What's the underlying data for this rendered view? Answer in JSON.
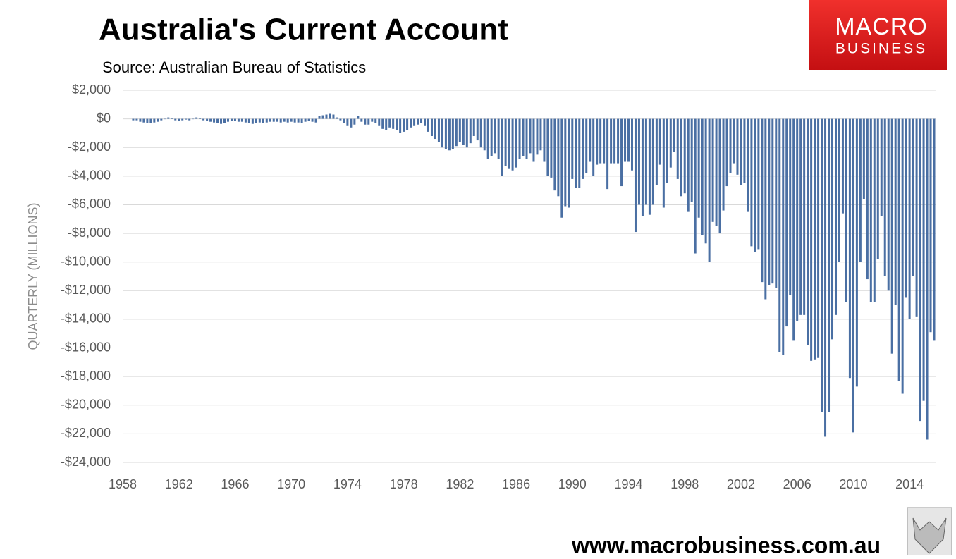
{
  "chart_data": {
    "type": "bar",
    "title": "Australia's Current Account",
    "subtitle": "Source: Australian Bureau of Statistics",
    "ylabel": "QUARTERLY (MILLIONS)",
    "logo_top": "MACRO",
    "logo_bottom": "BUSINESS",
    "website": "www.macrobusiness.com.au",
    "color": "#4a6fa3",
    "grid": true,
    "xlim": [
      1958,
      2015.85
    ],
    "xticks": [
      1958,
      1962,
      1966,
      1970,
      1974,
      1978,
      1982,
      1986,
      1990,
      1994,
      1998,
      2002,
      2006,
      2010,
      2014
    ],
    "ylim": [
      -24000,
      2000
    ],
    "yticks": [
      {
        "value": 2000,
        "label": "$2,000"
      },
      {
        "value": 0,
        "label": "$0"
      },
      {
        "value": -2000,
        "label": "-$2,000"
      },
      {
        "value": -4000,
        "label": "-$4,000"
      },
      {
        "value": -6000,
        "label": "-$6,000"
      },
      {
        "value": -8000,
        "label": "-$8,000"
      },
      {
        "value": -10000,
        "label": "-$10,000"
      },
      {
        "value": -12000,
        "label": "-$12,000"
      },
      {
        "value": -14000,
        "label": "-$14,000"
      },
      {
        "value": -16000,
        "label": "-$16,000"
      },
      {
        "value": -18000,
        "label": "-$18,000"
      },
      {
        "value": -20000,
        "label": "-$20,000"
      },
      {
        "value": -22000,
        "label": "-$22,000"
      },
      {
        "value": -24000,
        "label": "-$24,000"
      }
    ],
    "x": [
      1958.75,
      1959,
      1959.25,
      1959.5,
      1959.75,
      1960,
      1960.25,
      1960.5,
      1960.75,
      1961,
      1961.25,
      1961.5,
      1961.75,
      1962,
      1962.25,
      1962.5,
      1962.75,
      1963,
      1963.25,
      1963.5,
      1963.75,
      1964,
      1964.25,
      1964.5,
      1964.75,
      1965,
      1965.25,
      1965.5,
      1965.75,
      1966,
      1966.25,
      1966.5,
      1966.75,
      1967,
      1967.25,
      1967.5,
      1967.75,
      1968,
      1968.25,
      1968.5,
      1968.75,
      1969,
      1969.25,
      1969.5,
      1969.75,
      1970,
      1970.25,
      1970.5,
      1970.75,
      1971,
      1971.25,
      1971.5,
      1971.75,
      1972,
      1972.25,
      1972.5,
      1972.75,
      1973,
      1973.25,
      1973.5,
      1973.75,
      1974,
      1974.25,
      1974.5,
      1974.75,
      1975,
      1975.25,
      1975.5,
      1975.75,
      1976,
      1976.25,
      1976.5,
      1976.75,
      1977,
      1977.25,
      1977.5,
      1977.75,
      1978,
      1978.25,
      1978.5,
      1978.75,
      1979,
      1979.25,
      1979.5,
      1979.75,
      1980,
      1980.25,
      1980.5,
      1980.75,
      1981,
      1981.25,
      1981.5,
      1981.75,
      1982,
      1982.25,
      1982.5,
      1982.75,
      1983,
      1983.25,
      1983.5,
      1983.75,
      1984,
      1984.25,
      1984.5,
      1984.75,
      1985,
      1985.25,
      1985.5,
      1985.75,
      1986,
      1986.25,
      1986.5,
      1986.75,
      1987,
      1987.25,
      1987.5,
      1987.75,
      1988,
      1988.25,
      1988.5,
      1988.75,
      1989,
      1989.25,
      1989.5,
      1989.75,
      1990,
      1990.25,
      1990.5,
      1990.75,
      1991,
      1991.25,
      1991.5,
      1991.75,
      1992,
      1992.25,
      1992.5,
      1992.75,
      1993,
      1993.25,
      1993.5,
      1993.75,
      1994,
      1994.25,
      1994.5,
      1994.75,
      1995,
      1995.25,
      1995.5,
      1995.75,
      1996,
      1996.25,
      1996.5,
      1996.75,
      1997,
      1997.25,
      1997.5,
      1997.75,
      1998,
      1998.25,
      1998.5,
      1998.75,
      1999,
      1999.25,
      1999.5,
      1999.75,
      2000,
      2000.25,
      2000.5,
      2000.75,
      2001,
      2001.25,
      2001.5,
      2001.75,
      2002,
      2002.25,
      2002.5,
      2002.75,
      2003,
      2003.25,
      2003.5,
      2003.75,
      2004,
      2004.25,
      2004.5,
      2004.75,
      2005,
      2005.25,
      2005.5,
      2005.75,
      2006,
      2006.25,
      2006.5,
      2006.75,
      2007,
      2007.25,
      2007.5,
      2007.75,
      2008,
      2008.25,
      2008.5,
      2008.75,
      2009,
      2009.25,
      2009.5,
      2009.75,
      2010,
      2010.25,
      2010.5,
      2010.75,
      2011,
      2011.25,
      2011.5,
      2011.75,
      2012,
      2012.25,
      2012.5,
      2012.75,
      2013,
      2013.25,
      2013.5,
      2013.75,
      2014,
      2014.25,
      2014.5,
      2014.75,
      2015,
      2015.25,
      2015.5,
      2015.75
    ],
    "values": [
      -100,
      -100,
      -200,
      -250,
      -300,
      -300,
      -250,
      -200,
      -100,
      0,
      100,
      50,
      -100,
      -150,
      -100,
      -50,
      -100,
      0,
      100,
      50,
      -100,
      -150,
      -200,
      -250,
      -300,
      -350,
      -300,
      -200,
      -150,
      -150,
      -200,
      -200,
      -250,
      -300,
      -350,
      -300,
      -250,
      -300,
      -250,
      -200,
      -200,
      -200,
      -250,
      -200,
      -250,
      -200,
      -250,
      -250,
      -300,
      -200,
      -150,
      -200,
      -250,
      200,
      250,
      300,
      350,
      300,
      100,
      -100,
      -300,
      -500,
      -600,
      -400,
      200,
      -200,
      -400,
      -400,
      -200,
      -300,
      -500,
      -700,
      -800,
      -600,
      -700,
      -800,
      -1000,
      -900,
      -800,
      -600,
      -500,
      -400,
      -300,
      -500,
      -900,
      -1200,
      -1400,
      -1600,
      -2000,
      -2100,
      -2200,
      -2100,
      -1900,
      -1600,
      -1800,
      -2000,
      -1700,
      -1200,
      -1500,
      -2000,
      -2200,
      -2800,
      -2600,
      -2400,
      -2800,
      -4000,
      -3300,
      -3500,
      -3600,
      -3400,
      -2800,
      -2600,
      -2800,
      -2400,
      -3000,
      -2500,
      -2200,
      -3000,
      -4000,
      -4100,
      -5000,
      -5400,
      -6900,
      -6100,
      -6200,
      -4200,
      -4800,
      -4800,
      -4200,
      -3800,
      -3000,
      -4000,
      -3200,
      -3100,
      -3100,
      -4900,
      -3100,
      -3100,
      -3100,
      -4700,
      -3000,
      -3000,
      -3600,
      -7900,
      -6000,
      -6800,
      -6000,
      -6700,
      -6000,
      -4600,
      -3200,
      -6200,
      -4500,
      -3400,
      -2300,
      -4200,
      -5400,
      -5200,
      -6500,
      -5800,
      -9400,
      -6900,
      -8100,
      -8700,
      -10000,
      -7200,
      -7500,
      -8000,
      -6400,
      -4700,
      -3800,
      -3100,
      -3900,
      -4600,
      -4500,
      -6500,
      -8900,
      -9300,
      -9100,
      -11400,
      -12600,
      -11600,
      -11500,
      -11800,
      -16300,
      -16500,
      -14500,
      -12300,
      -15500,
      -14100,
      -13700,
      -13700,
      -15800,
      -16900,
      -16800,
      -16700,
      -20500,
      -22200,
      -20500,
      -15400,
      -13700,
      -10000,
      -6600,
      -12800,
      -18100,
      -21900,
      -18700,
      -10000,
      -5600,
      -11200,
      -12800,
      -12800,
      -9800,
      -6800,
      -11000,
      -12000,
      -16400,
      -13000,
      -18300,
      -19200,
      -12500,
      -14000,
      -11000,
      -13800,
      -21100,
      -19700,
      -22400,
      -14900,
      -15500
    ]
  }
}
